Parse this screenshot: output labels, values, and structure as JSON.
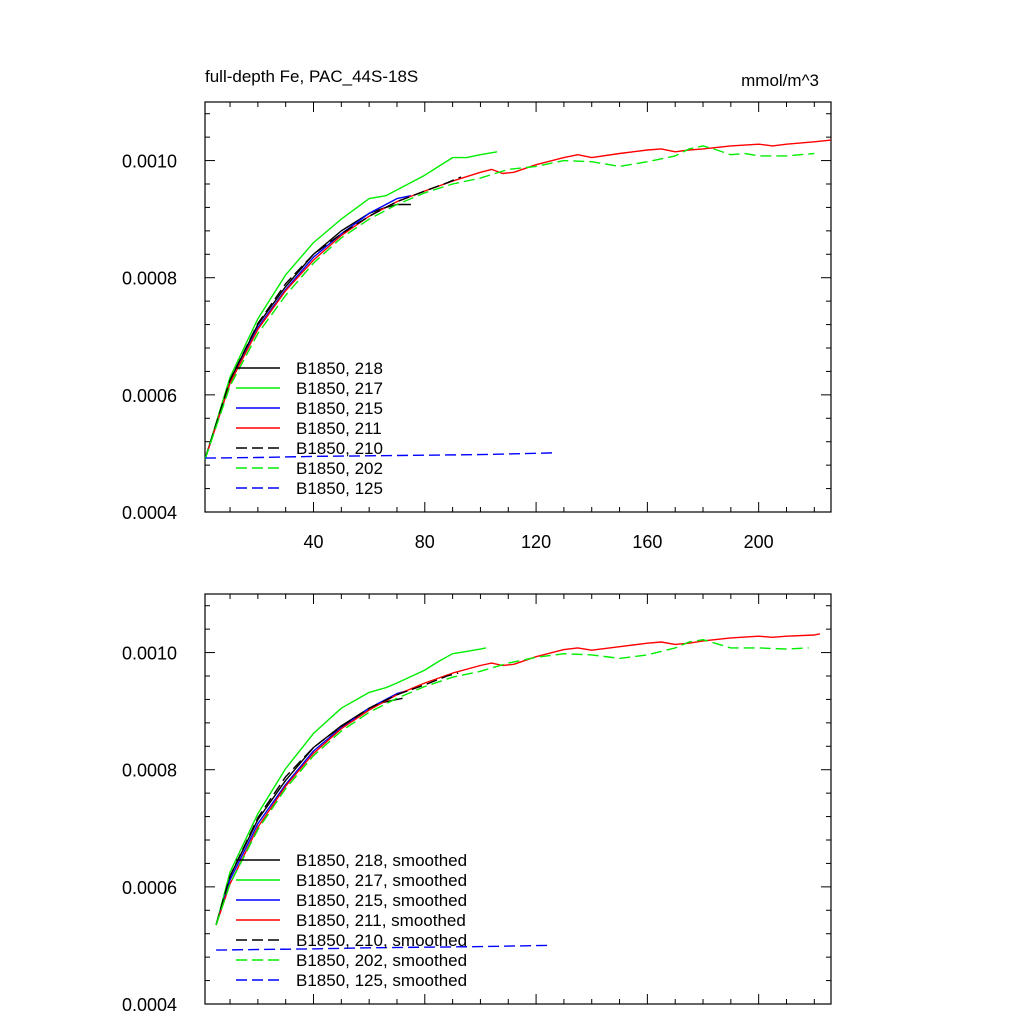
{
  "figure": {
    "title_left": "full-depth Fe, PAC_44S-18S",
    "title_right": "mmol/m^3"
  },
  "chart_data": [
    {
      "type": "line",
      "name": "top-panel",
      "xlim": [
        1,
        226
      ],
      "ylim": [
        0.0004,
        0.0011
      ],
      "xticks": [
        40,
        80,
        120,
        160,
        200
      ],
      "yticks": [
        0.0004,
        0.0006,
        0.0008,
        0.001
      ],
      "ytick_labels": [
        "0.0004",
        "0.0006",
        "0.0008",
        "0.0010"
      ],
      "xtick_labels": [
        "40",
        "80",
        "120",
        "160",
        "200"
      ],
      "series": [
        {
          "name": "B1850, 218",
          "color": "#000000",
          "dash": false,
          "x": [
            1,
            10,
            20,
            30,
            40,
            50,
            60,
            66,
            70,
            75
          ],
          "y": [
            0.00049,
            0.000625,
            0.00072,
            0.000785,
            0.00084,
            0.00088,
            0.00091,
            0.00092,
            0.000925,
            0.000925
          ]
        },
        {
          "name": "B1850, 217",
          "color": "#00ee00",
          "dash": false,
          "x": [
            1,
            10,
            20,
            30,
            40,
            50,
            60,
            66,
            70,
            80,
            85,
            90,
            95,
            100,
            106
          ],
          "y": [
            0.00049,
            0.00063,
            0.00073,
            0.000805,
            0.00086,
            0.0009,
            0.000935,
            0.00094,
            0.00095,
            0.000975,
            0.00099,
            0.001005,
            0.001005,
            0.00101,
            0.001015
          ]
        },
        {
          "name": "B1850, 215",
          "color": "#0000ff",
          "dash": false,
          "x": [
            1,
            10,
            20,
            30,
            40,
            50,
            60,
            70,
            75
          ],
          "y": [
            0.00049,
            0.00062,
            0.000715,
            0.00078,
            0.000835,
            0.000875,
            0.00091,
            0.000935,
            0.00094
          ]
        },
        {
          "name": "B1850, 211",
          "color": "#ff0000",
          "dash": false,
          "x": [
            1,
            10,
            20,
            30,
            40,
            50,
            60,
            70,
            80,
            90,
            100,
            104,
            108,
            112,
            120,
            130,
            135,
            140,
            150,
            160,
            165,
            170,
            175,
            180,
            190,
            200,
            205,
            210,
            220,
            226
          ],
          "y": [
            0.00049,
            0.00062,
            0.000712,
            0.000778,
            0.00083,
            0.000872,
            0.000905,
            0.00093,
            0.000948,
            0.000965,
            0.00098,
            0.000985,
            0.000978,
            0.00098,
            0.000993,
            0.001005,
            0.00101,
            0.001005,
            0.001012,
            0.001018,
            0.00102,
            0.001015,
            0.001018,
            0.00102,
            0.001025,
            0.001028,
            0.001025,
            0.001028,
            0.001032,
            0.001035
          ]
        },
        {
          "name": "B1850, 210",
          "color": "#000000",
          "dash": true,
          "x": [
            1,
            10,
            20,
            30,
            40,
            50,
            60,
            70,
            80,
            88,
            93
          ],
          "y": [
            0.00049,
            0.000625,
            0.000722,
            0.00079,
            0.00084,
            0.000875,
            0.000905,
            0.00093,
            0.000948,
            0.000962,
            0.000972
          ]
        },
        {
          "name": "B1850, 202",
          "color": "#00ee00",
          "dash": true,
          "x": [
            1,
            10,
            20,
            30,
            40,
            50,
            60,
            70,
            80,
            90,
            100,
            110,
            120,
            130,
            140,
            150,
            160,
            170,
            175,
            180,
            185,
            190,
            195,
            200,
            210,
            220
          ],
          "y": [
            0.00049,
            0.000615,
            0.000705,
            0.00077,
            0.000825,
            0.000868,
            0.0009,
            0.000925,
            0.000945,
            0.00096,
            0.00097,
            0.000985,
            0.00099,
            0.001,
            0.000998,
            0.00099,
            0.000998,
            0.001008,
            0.00102,
            0.001025,
            0.001018,
            0.00101,
            0.001012,
            0.001008,
            0.001008,
            0.001012
          ]
        },
        {
          "name": "B1850, 125",
          "color": "#0000ff",
          "dash": true,
          "x": [
            1,
            20,
            40,
            60,
            80,
            100,
            127
          ],
          "y": [
            0.000492,
            0.000493,
            0.000495,
            0.000496,
            0.000497,
            0.000498,
            0.000501
          ]
        }
      ]
    },
    {
      "type": "line",
      "name": "bottom-panel",
      "xlim": [
        1,
        226
      ],
      "ylim": [
        0.0004,
        0.0011
      ],
      "xticks": [
        40,
        80,
        120,
        160,
        200
      ],
      "yticks": [
        0.0004,
        0.0006,
        0.0008,
        0.001
      ],
      "ytick_labels": [
        "0.0004",
        "0.0006",
        "0.0008",
        "0.0010"
      ],
      "xtick_labels": [],
      "series": [
        {
          "name": "B1850, 218, smoothed",
          "color": "#000000",
          "dash": false,
          "x": [
            5,
            10,
            20,
            30,
            40,
            50,
            60,
            65,
            70,
            72
          ],
          "y": [
            0.000535,
            0.000618,
            0.000715,
            0.000782,
            0.000838,
            0.000875,
            0.000905,
            0.000915,
            0.00092,
            0.000922
          ]
        },
        {
          "name": "B1850, 217, smoothed",
          "color": "#00ee00",
          "dash": false,
          "x": [
            5,
            10,
            20,
            30,
            40,
            50,
            60,
            66,
            70,
            80,
            85,
            90,
            95,
            100,
            102
          ],
          "y": [
            0.000535,
            0.000625,
            0.000725,
            0.000802,
            0.000862,
            0.000905,
            0.000932,
            0.00094,
            0.000948,
            0.00097,
            0.000985,
            0.000998,
            0.001002,
            0.001006,
            0.001008
          ]
        },
        {
          "name": "B1850, 215, smoothed",
          "color": "#0000ff",
          "dash": false,
          "x": [
            5,
            10,
            20,
            30,
            40,
            50,
            60,
            70,
            74
          ],
          "y": [
            0.000535,
            0.000612,
            0.000708,
            0.000775,
            0.000832,
            0.000872,
            0.000905,
            0.00093,
            0.000935
          ]
        },
        {
          "name": "B1850, 211, smoothed",
          "color": "#ff0000",
          "dash": false,
          "x": [
            5,
            10,
            20,
            30,
            40,
            50,
            60,
            70,
            80,
            90,
            100,
            104,
            108,
            112,
            120,
            130,
            135,
            140,
            150,
            160,
            165,
            170,
            175,
            180,
            190,
            200,
            205,
            210,
            220,
            222
          ],
          "y": [
            0.000535,
            0.000605,
            0.000702,
            0.000772,
            0.000828,
            0.00087,
            0.000902,
            0.000928,
            0.000948,
            0.000965,
            0.000978,
            0.000982,
            0.000978,
            0.00098,
            0.000993,
            0.001005,
            0.001008,
            0.001004,
            0.00101,
            0.001016,
            0.001018,
            0.001014,
            0.001016,
            0.00102,
            0.001025,
            0.001028,
            0.001026,
            0.001028,
            0.00103,
            0.001032
          ]
        },
        {
          "name": "B1850, 210, smoothed",
          "color": "#000000",
          "dash": true,
          "x": [
            5,
            10,
            20,
            30,
            40,
            50,
            60,
            70,
            80,
            88,
            92
          ],
          "y": [
            0.000535,
            0.000618,
            0.000718,
            0.000788,
            0.000838,
            0.000874,
            0.000905,
            0.000928,
            0.000945,
            0.00096,
            0.000965
          ]
        },
        {
          "name": "B1850, 202, smoothed",
          "color": "#00ee00",
          "dash": true,
          "x": [
            5,
            10,
            20,
            30,
            40,
            50,
            60,
            70,
            80,
            90,
            100,
            110,
            120,
            130,
            140,
            150,
            160,
            170,
            175,
            180,
            185,
            190,
            195,
            200,
            210,
            218
          ],
          "y": [
            0.000535,
            0.000605,
            0.000698,
            0.000768,
            0.000824,
            0.000866,
            0.000898,
            0.000922,
            0.000942,
            0.000958,
            0.000968,
            0.000982,
            0.000992,
            0.000998,
            0.000996,
            0.00099,
            0.000996,
            0.001008,
            0.001018,
            0.001022,
            0.001015,
            0.001008,
            0.001008,
            0.001008,
            0.001006,
            0.001008
          ]
        },
        {
          "name": "B1850, 125, smoothed",
          "color": "#0000ff",
          "dash": true,
          "x": [
            5,
            20,
            40,
            60,
            80,
            100,
            124
          ],
          "y": [
            0.000492,
            0.000493,
            0.000494,
            0.000496,
            0.000497,
            0.000498,
            0.0005
          ]
        }
      ]
    }
  ]
}
